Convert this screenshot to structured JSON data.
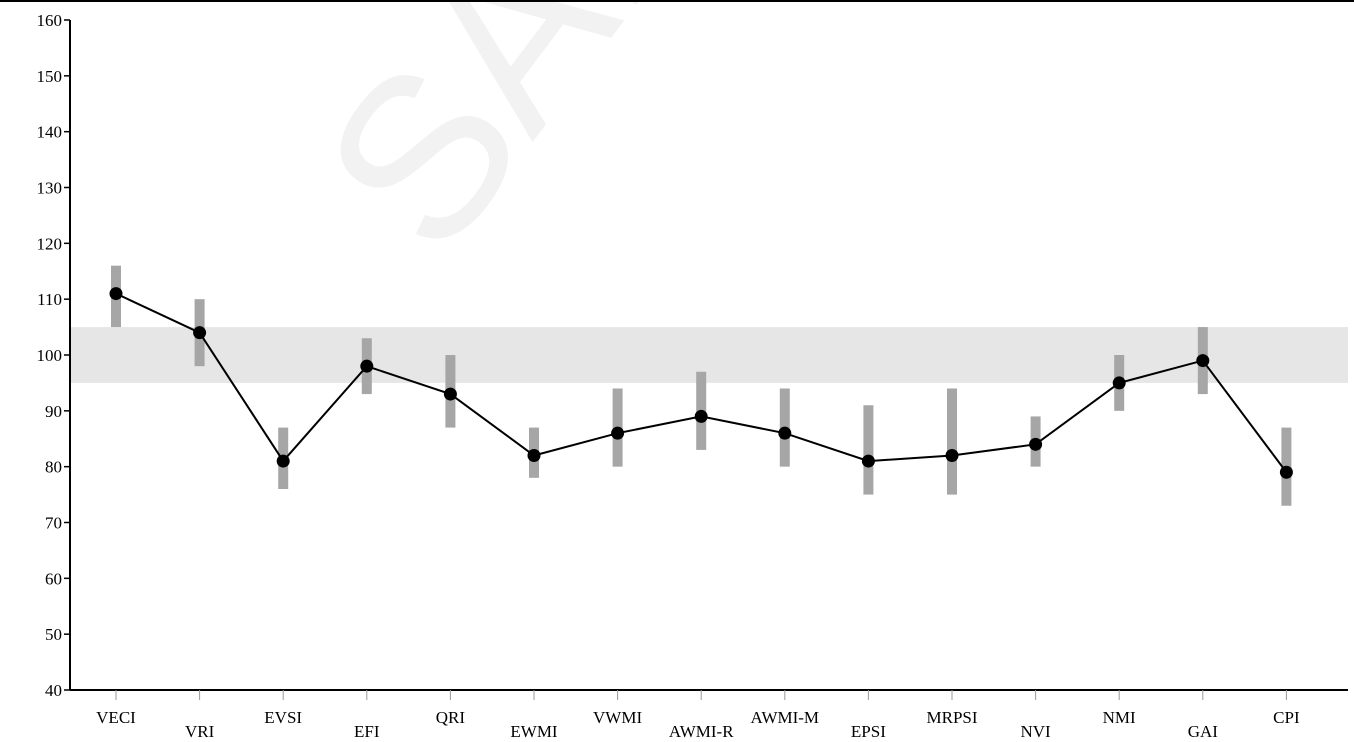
{
  "chart_data": {
    "type": "line",
    "title": "",
    "xlabel": "",
    "ylabel": "",
    "ylim": [
      40,
      160
    ],
    "yticks": [
      40,
      50,
      60,
      70,
      80,
      90,
      100,
      110,
      120,
      130,
      140,
      150,
      160
    ],
    "grid": false,
    "legend": "none",
    "average_band": [
      95,
      105
    ],
    "categories": [
      "VECI",
      "VRI",
      "EVSI",
      "EFI",
      "QRI",
      "EWMI",
      "VWMI",
      "AWMI-R",
      "AWMI-M",
      "EPSI",
      "MRPSI",
      "NVI",
      "NMI",
      "GAI",
      "CPI"
    ],
    "series": [
      {
        "values": [
          111,
          104,
          81,
          98,
          93,
          82,
          86,
          89,
          86,
          81,
          82,
          84,
          95,
          99,
          79
        ],
        "ci_low": [
          105,
          98,
          76,
          93,
          87,
          78,
          80,
          83,
          80,
          75,
          75,
          80,
          90,
          93,
          73
        ],
        "ci_high": [
          116,
          110,
          87,
          103,
          100,
          87,
          94,
          97,
          94,
          91,
          94,
          89,
          100,
          105,
          87
        ]
      }
    ],
    "colors": {
      "line": "#000000",
      "point": "#000000",
      "error_bar": "#a6a6a6",
      "band": "#e6e6e6",
      "axis": "#000000",
      "watermark": "#f2f2f2"
    }
  },
  "watermark": "SAMPLE"
}
